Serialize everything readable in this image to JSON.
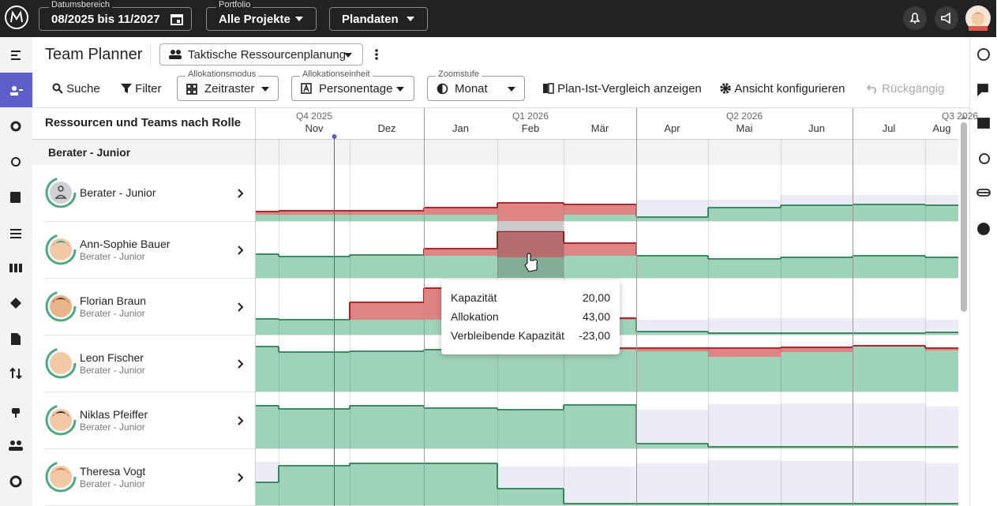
{
  "top_bar": {
    "date_range": {
      "label": "Datumsbereich",
      "value": "08/2025 bis 11/2027"
    },
    "portfolio": {
      "label": "Portfolio",
      "value": "Alle Projekte"
    },
    "data_source": "Plandaten"
  },
  "header": {
    "title": "Team Planner",
    "view": "Taktische Ressourcenplanung"
  },
  "toolbar": {
    "search": "Suche",
    "filter": "Filter",
    "allocation_mode": {
      "label": "Allokationsmodus",
      "value": "Zeitraster"
    },
    "allocation_unit": {
      "label": "Allokationseinheit",
      "value": "Personentage"
    },
    "zoom": {
      "label": "Zoomstufe",
      "value": "Monat"
    },
    "compare": "Plan-Ist-Vergleich anzeigen",
    "configure": "Ansicht konfigurieren",
    "undo": "Rückgängig"
  },
  "grid": {
    "column_header": "Ressourcen und Teams nach Rolle",
    "quarters": [
      "Q4 2025",
      "Q1 2026",
      "Q2 2026",
      "Q3 2026"
    ],
    "months": [
      "Nov",
      "Dez",
      "Jan",
      "Feb",
      "Mär",
      "Apr",
      "Mai",
      "Jun",
      "Jul",
      "Aug"
    ],
    "group": "Berater - Junior",
    "rows": [
      {
        "name": "Berater - Junior"
      },
      {
        "name": "Ann-Sophie Bauer",
        "role": "Berater - Junior"
      },
      {
        "name": "Florian Braun",
        "role": "Berater - Junior"
      },
      {
        "name": "Leon Fischer",
        "role": "Berater - Junior"
      },
      {
        "name": "Niklas Pfeiffer",
        "role": "Berater - Junior"
      },
      {
        "name": "Theresa Vogt",
        "role": "Berater - Junior"
      }
    ]
  },
  "tooltip": {
    "rows": [
      [
        "Kapazität",
        "20,00"
      ],
      [
        "Allokation",
        "43,00"
      ],
      [
        "Verbleibende Kapazität",
        "-23,00"
      ]
    ]
  }
}
